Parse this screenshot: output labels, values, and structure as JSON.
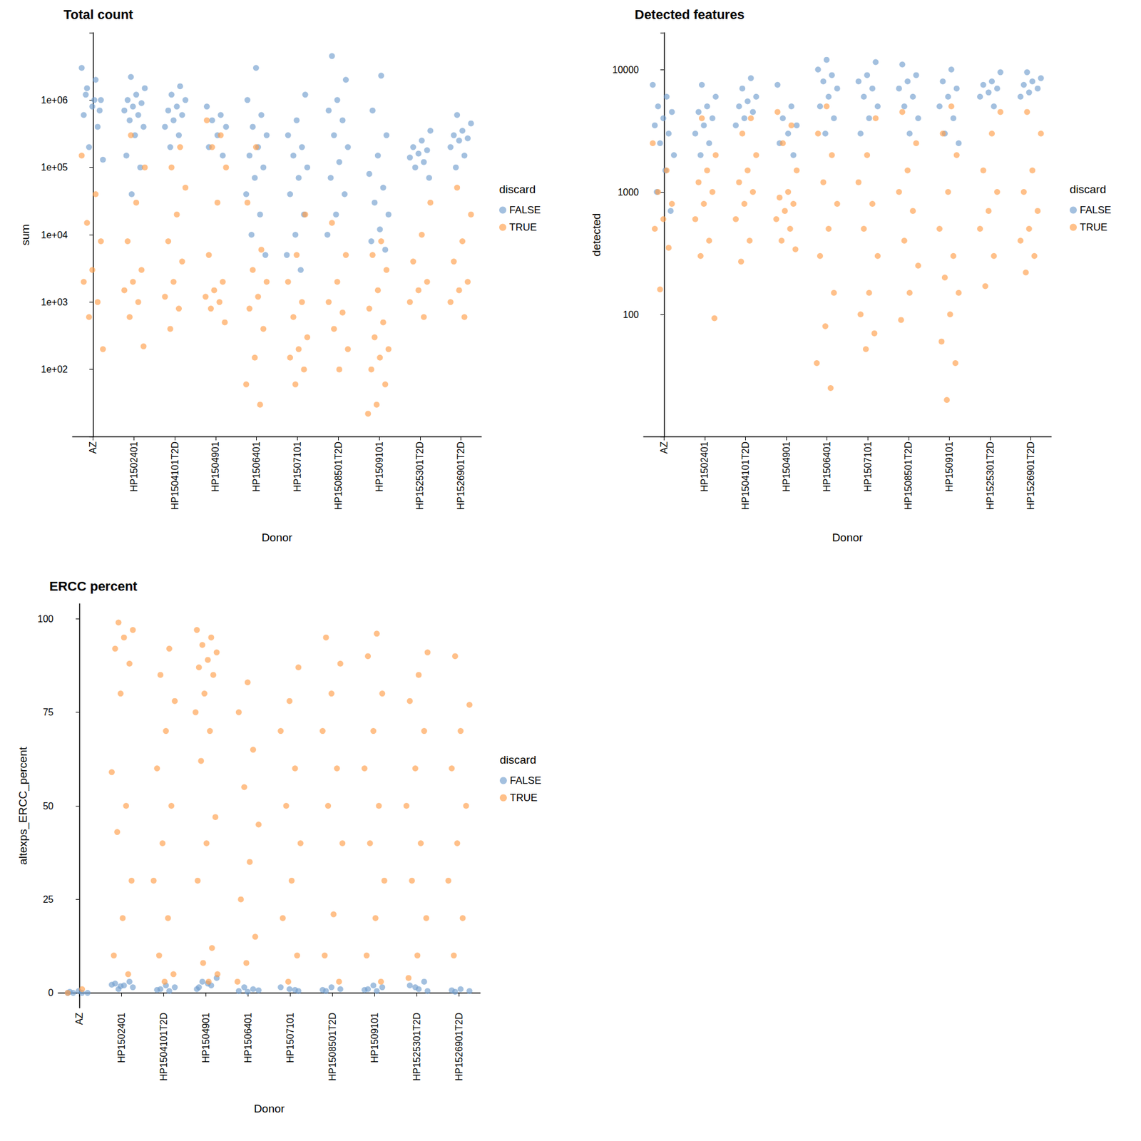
{
  "chart_data": [
    {
      "type": "strip",
      "title": "Total count",
      "x_label": "Donor",
      "y_label": "sum",
      "log": "y",
      "legend_title": "discard",
      "categories": [
        "AZ",
        "HP1502401",
        "HP1504101T2D",
        "HP1504901",
        "HP1506401",
        "HP1507101",
        "HP1508501T2D",
        "HP1509101",
        "HP1525301T2D",
        "HP1526901T2D"
      ],
      "ylim": [
        10,
        10000000
      ],
      "yticks": [
        {
          "value": 100,
          "label": "1e+02"
        },
        {
          "value": 1000,
          "label": "1e+03"
        },
        {
          "value": 10000,
          "label": "1e+04"
        },
        {
          "value": 100000,
          "label": "1e+05"
        },
        {
          "value": 1000000,
          "label": "1e+06"
        }
      ],
      "series": [
        {
          "name": "FALSE",
          "color": "#729ece",
          "values": [
            [
              3000000,
              2000000,
              1500000,
              1000000,
              800000,
              600000,
              400000,
              200000,
              130000,
              1000000,
              1200000,
              700000
            ],
            [
              2200000,
              1500000,
              1200000,
              1000000,
              900000,
              800000,
              700000,
              600000,
              500000,
              400000,
              300000,
              150000,
              100000,
              40000
            ],
            [
              1600000,
              1200000,
              1000000,
              800000,
              700000,
              600000,
              500000,
              400000,
              300000,
              200000
            ],
            [
              800000,
              600000,
              500000,
              400000,
              300000,
              200000,
              150000
            ],
            [
              3000000,
              1000000,
              600000,
              400000,
              300000,
              200000,
              150000,
              100000,
              70000,
              40000,
              20000,
              10000,
              5000
            ],
            [
              1200000,
              500000,
              300000,
              200000,
              150000,
              100000,
              70000,
              40000,
              20000,
              10000,
              5000,
              3000
            ],
            [
              4500000,
              2000000,
              1000000,
              700000,
              500000,
              300000,
              200000,
              120000,
              70000,
              40000,
              20000,
              10000
            ],
            [
              2300000,
              700000,
              300000,
              150000,
              80000,
              50000,
              30000,
              20000,
              12000,
              8000,
              6000
            ],
            [
              350000,
              250000,
              200000,
              180000,
              160000,
              140000,
              120000,
              100000,
              70000
            ],
            [
              600000,
              450000,
              350000,
              300000,
              270000,
              250000,
              200000,
              150000,
              100000
            ]
          ]
        },
        {
          "name": "TRUE",
          "color": "#ff9e4a",
          "values": [
            [
              150000,
              40000,
              15000,
              8000,
              3000,
              2000,
              1000,
              600,
              200
            ],
            [
              300000,
              100000,
              30000,
              8000,
              3000,
              2000,
              1500,
              1000,
              600,
              220
            ],
            [
              200000,
              100000,
              50000,
              20000,
              8000,
              4000,
              2000,
              1200,
              800,
              400
            ],
            [
              500000,
              300000,
              200000,
              100000,
              30000,
              5000,
              2000,
              1500,
              1200,
              1000,
              800,
              500
            ],
            [
              200000,
              30000,
              6000,
              3000,
              2000,
              1200,
              800,
              400,
              150,
              60,
              30
            ],
            [
              20000,
              5000,
              2000,
              1000,
              600,
              300,
              200,
              150,
              100,
              60
            ],
            [
              15000,
              5000,
              2000,
              1000,
              700,
              400,
              200,
              100
            ],
            [
              8000,
              5000,
              3000,
              1500,
              800,
              500,
              300,
              200,
              150,
              100,
              60,
              30,
              22
            ],
            [
              30000,
              10000,
              4000,
              2000,
              1500,
              1000,
              600
            ],
            [
              50000,
              20000,
              8000,
              4000,
              2000,
              1500,
              1000,
              600
            ]
          ]
        }
      ]
    },
    {
      "type": "strip",
      "title": "Detected features",
      "x_label": "Donor",
      "y_label": "detected",
      "log": "y",
      "legend_title": "discard",
      "categories": [
        "AZ",
        "HP1502401",
        "HP1504101T2D",
        "HP1504901",
        "HP1506401",
        "HP1507101",
        "HP1508501T2D",
        "HP1509101",
        "HP1525301T2D",
        "HP1526901T2D"
      ],
      "ylim": [
        10,
        20000
      ],
      "yticks": [
        100,
        1000,
        10000
      ],
      "series": [
        {
          "name": "FALSE",
          "color": "#729ece",
          "values": [
            [
              7500,
              6000,
              5000,
              4500,
              4000,
              3500,
              3000,
              2500,
              2000,
              1500,
              1000,
              700
            ],
            [
              7500,
              6000,
              5000,
              4500,
              4000,
              3500,
              3000,
              2500,
              2000
            ],
            [
              8500,
              7000,
              6000,
              5500,
              5000,
              4500,
              4000,
              3500
            ],
            [
              7500,
              5000,
              4000,
              3500,
              3000,
              2500,
              2000
            ],
            [
              12000,
              10000,
              9000,
              8000,
              7000,
              6000,
              5000,
              4000,
              3000
            ],
            [
              11500,
              9000,
              8000,
              7000,
              6000,
              5000,
              4000,
              3000
            ],
            [
              11000,
              9000,
              8000,
              7000,
              6000,
              5000,
              4000,
              3000
            ],
            [
              10000,
              8000,
              7000,
              6000,
              5000,
              4000,
              3000,
              2500
            ],
            [
              9500,
              8000,
              7500,
              7000,
              6500,
              6000,
              5000
            ],
            [
              9500,
              8500,
              8000,
              7500,
              7000,
              6500,
              6000
            ]
          ]
        },
        {
          "name": "TRUE",
          "color": "#ff9e4a",
          "values": [
            [
              2500,
              1500,
              1000,
              800,
              600,
              500,
              350,
              160
            ],
            [
              4000,
              2000,
              1500,
              1200,
              1000,
              800,
              600,
              400,
              300,
              93
            ],
            [
              4000,
              3000,
              2000,
              1500,
              1200,
              1000,
              800,
              600,
              400,
              270
            ],
            [
              4500,
              3500,
              2500,
              1500,
              1000,
              900,
              800,
              700,
              600,
              500,
              400,
              340
            ],
            [
              5000,
              3000,
              2000,
              1200,
              800,
              500,
              300,
              150,
              80,
              40,
              25
            ],
            [
              4000,
              2000,
              1200,
              800,
              500,
              300,
              150,
              100,
              70,
              52
            ],
            [
              4500,
              2500,
              1500,
              1000,
              700,
              400,
              250,
              150,
              90
            ],
            [
              5000,
              3000,
              2000,
              1000,
              500,
              300,
              200,
              150,
              100,
              60,
              40,
              20
            ],
            [
              4500,
              3000,
              1500,
              1000,
              700,
              500,
              300,
              170
            ],
            [
              4500,
              3000,
              1500,
              1000,
              700,
              500,
              400,
              300,
              220
            ]
          ]
        }
      ]
    },
    {
      "type": "strip",
      "title": "ERCC percent",
      "x_label": "Donor",
      "y_label": "altexps_ERCC_percent",
      "legend_title": "discard",
      "categories": [
        "AZ",
        "HP1502401",
        "HP1504101T2D",
        "HP1504901",
        "HP1506401",
        "HP1507101",
        "HP1508501T2D",
        "HP1509101",
        "HP1525301T2D",
        "HP1526901T2D"
      ],
      "ylim": [
        -4,
        104
      ],
      "yticks": [
        0,
        25,
        50,
        75,
        100
      ],
      "series": [
        {
          "name": "FALSE",
          "color": "#729ece",
          "values": [
            [
              0,
              0,
              0,
              0,
              0.5,
              0.3
            ],
            [
              1,
              1.5,
              2,
              2.5,
              3,
              1.8,
              2.2
            ],
            [
              0.5,
              1,
              1.5,
              2,
              0.8
            ],
            [
              1,
              2,
              3,
              4,
              2.5,
              1.5
            ],
            [
              0.3,
              0.5,
              1,
              1.5,
              0.7
            ],
            [
              0.5,
              1,
              1.5,
              0.8
            ],
            [
              0.5,
              1,
              1.5,
              0.8
            ],
            [
              0.5,
              1,
              1.5,
              2,
              0.8
            ],
            [
              0.5,
              1,
              2,
              3,
              1.5
            ],
            [
              0.3,
              0.5,
              1,
              0.7
            ]
          ]
        },
        {
          "name": "TRUE",
          "color": "#ff9e4a",
          "values": [
            [
              0,
              1
            ],
            [
              99,
              97,
              95,
              92,
              88,
              80,
              59,
              50,
              43,
              30,
              20,
              10,
              5
            ],
            [
              92,
              85,
              78,
              70,
              60,
              50,
              40,
              30,
              20,
              10,
              5,
              3
            ],
            [
              97,
              95,
              93,
              91,
              89,
              87,
              85,
              80,
              75,
              70,
              62,
              47,
              40,
              30,
              12,
              8,
              5,
              3
            ],
            [
              83,
              75,
              65,
              55,
              45,
              35,
              25,
              15,
              8,
              3
            ],
            [
              87,
              78,
              70,
              60,
              50,
              40,
              30,
              20,
              10,
              3
            ],
            [
              95,
              88,
              80,
              70,
              60,
              50,
              40,
              21,
              10,
              3
            ],
            [
              96,
              90,
              80,
              70,
              60,
              50,
              40,
              30,
              20,
              10,
              3
            ],
            [
              91,
              85,
              78,
              70,
              60,
              50,
              40,
              30,
              20,
              10,
              4
            ],
            [
              90,
              77,
              70,
              60,
              50,
              40,
              30,
              20,
              10
            ]
          ]
        }
      ]
    }
  ]
}
